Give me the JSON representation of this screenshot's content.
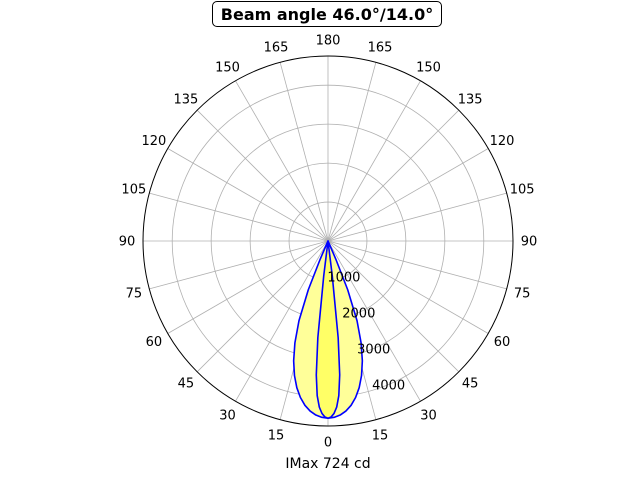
{
  "chart_data": {
    "type": "polar",
    "title": "Beam angle 46.0°/14.0°",
    "xlabel": "IMax 724 cd",
    "angle_tick_labels": [
      "0",
      "15",
      "30",
      "45",
      "60",
      "75",
      "90",
      "105",
      "120",
      "135",
      "150",
      "165",
      "180",
      "165",
      "150",
      "135",
      "120",
      "105",
      "90",
      "75",
      "60",
      "45",
      "30",
      "15"
    ],
    "radial_tick_labels": [
      "1000",
      "2000",
      "3000",
      "4000"
    ],
    "radial_ticks": [
      1000,
      2000,
      3000,
      4000
    ],
    "rmax": 4750,
    "grid": true,
    "series": [
      {
        "kind": "wide",
        "color": "#0000ff",
        "fill": "#ffff99",
        "angle_deg": [
          0,
          2,
          4,
          6,
          8,
          10,
          12,
          14,
          16,
          18,
          20,
          22,
          23.3,
          24
        ],
        "radius": [
          4550,
          4530,
          4480,
          4390,
          4260,
          4080,
          3850,
          3560,
          3200,
          2750,
          2180,
          1350,
          500,
          0
        ]
      },
      {
        "kind": "narrow",
        "color": "#0000ff",
        "fill": "#ffff66",
        "angle_deg": [
          0,
          1,
          2,
          3,
          4,
          5,
          6,
          7,
          7.3
        ],
        "radius": [
          4550,
          4520,
          4430,
          4270,
          3980,
          3450,
          2500,
          900,
          0
        ]
      }
    ]
  }
}
